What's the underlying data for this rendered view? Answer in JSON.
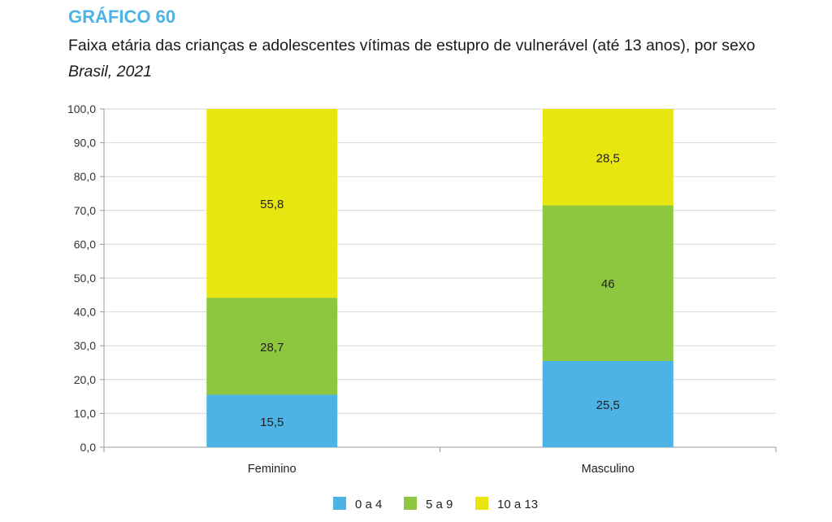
{
  "header": {
    "label": "GRÁFICO 60",
    "title": "Faixa etária das crianças e adolescentes vítimas de estupro de vulnerável (até 13 anos), por sexo",
    "subtitle": "Brasil, 2021"
  },
  "chart_data": {
    "type": "bar",
    "stacked": true,
    "categories": [
      "Feminino",
      "Masculino"
    ],
    "series": [
      {
        "name": "0 a 4",
        "values": [
          15.5,
          25.5
        ],
        "labels": [
          "15,5",
          "25,5"
        ],
        "color": "#4db3e6"
      },
      {
        "name": "5 a 9",
        "values": [
          28.7,
          46
        ],
        "labels": [
          "28,7",
          "46"
        ],
        "color": "#8dc63f"
      },
      {
        "name": "10 a 13",
        "values": [
          55.8,
          28.5
        ],
        "labels": [
          "55,8",
          "28,5"
        ],
        "color": "#e8e610"
      }
    ],
    "ylim": [
      0,
      100
    ],
    "yticks": [
      "0,0",
      "10,0",
      "20,0",
      "30,0",
      "40,0",
      "50,0",
      "60,0",
      "70,0",
      "80,0",
      "90,0",
      "100,0"
    ],
    "grid": true,
    "legend_position": "bottom"
  }
}
